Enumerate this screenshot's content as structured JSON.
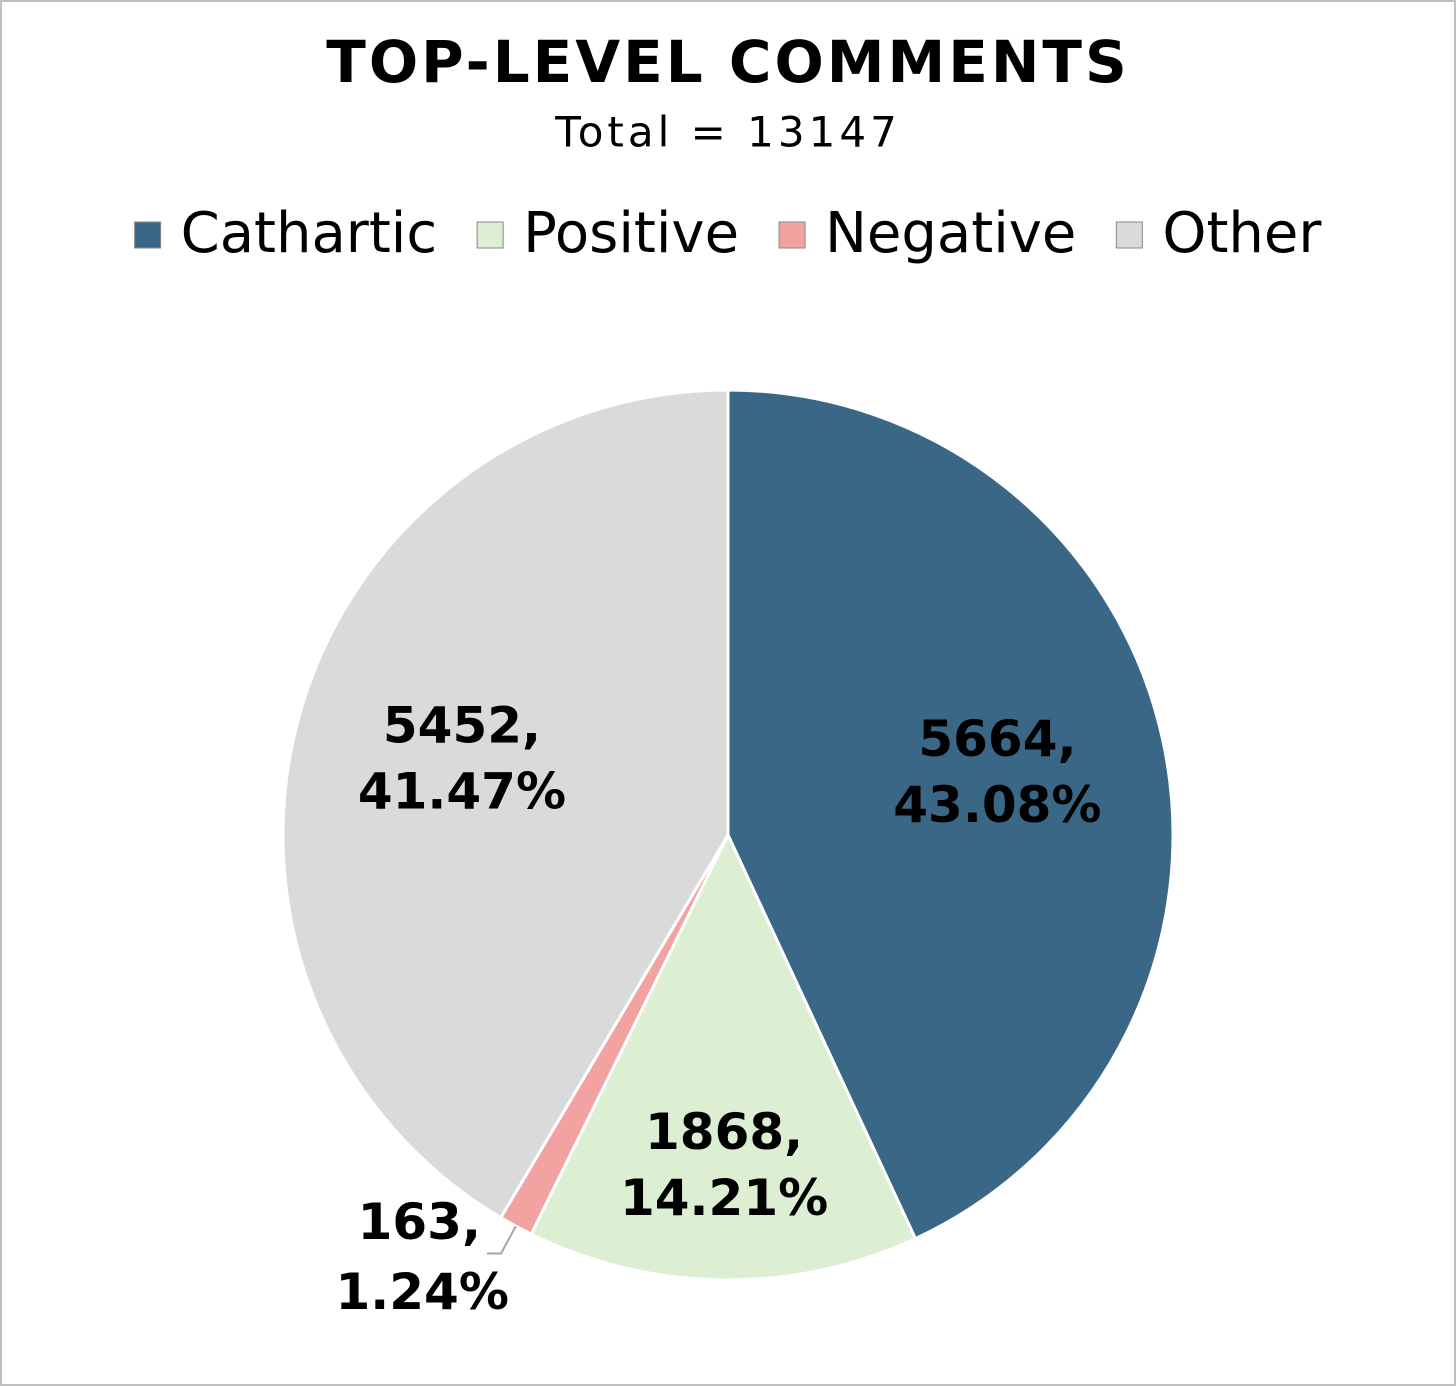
{
  "chart_data": {
    "type": "pie",
    "title": "TOP-LEVEL COMMENTS",
    "subtitle": "Total = 13147",
    "categories": [
      "Cathartic",
      "Positive",
      "Negative",
      "Other"
    ],
    "values": [
      5664,
      1868,
      163,
      5452
    ],
    "value_labels": [
      [
        "5664,",
        "43.08%"
      ],
      [
        "1868,",
        "14.21%"
      ],
      [
        "163,",
        "1.24%"
      ],
      [
        "5452,",
        "41.47%"
      ]
    ],
    "colors": [
      "#3b6786",
      "#dcefd3",
      "#f3a2a2",
      "#dadada"
    ],
    "legend": "top"
  }
}
